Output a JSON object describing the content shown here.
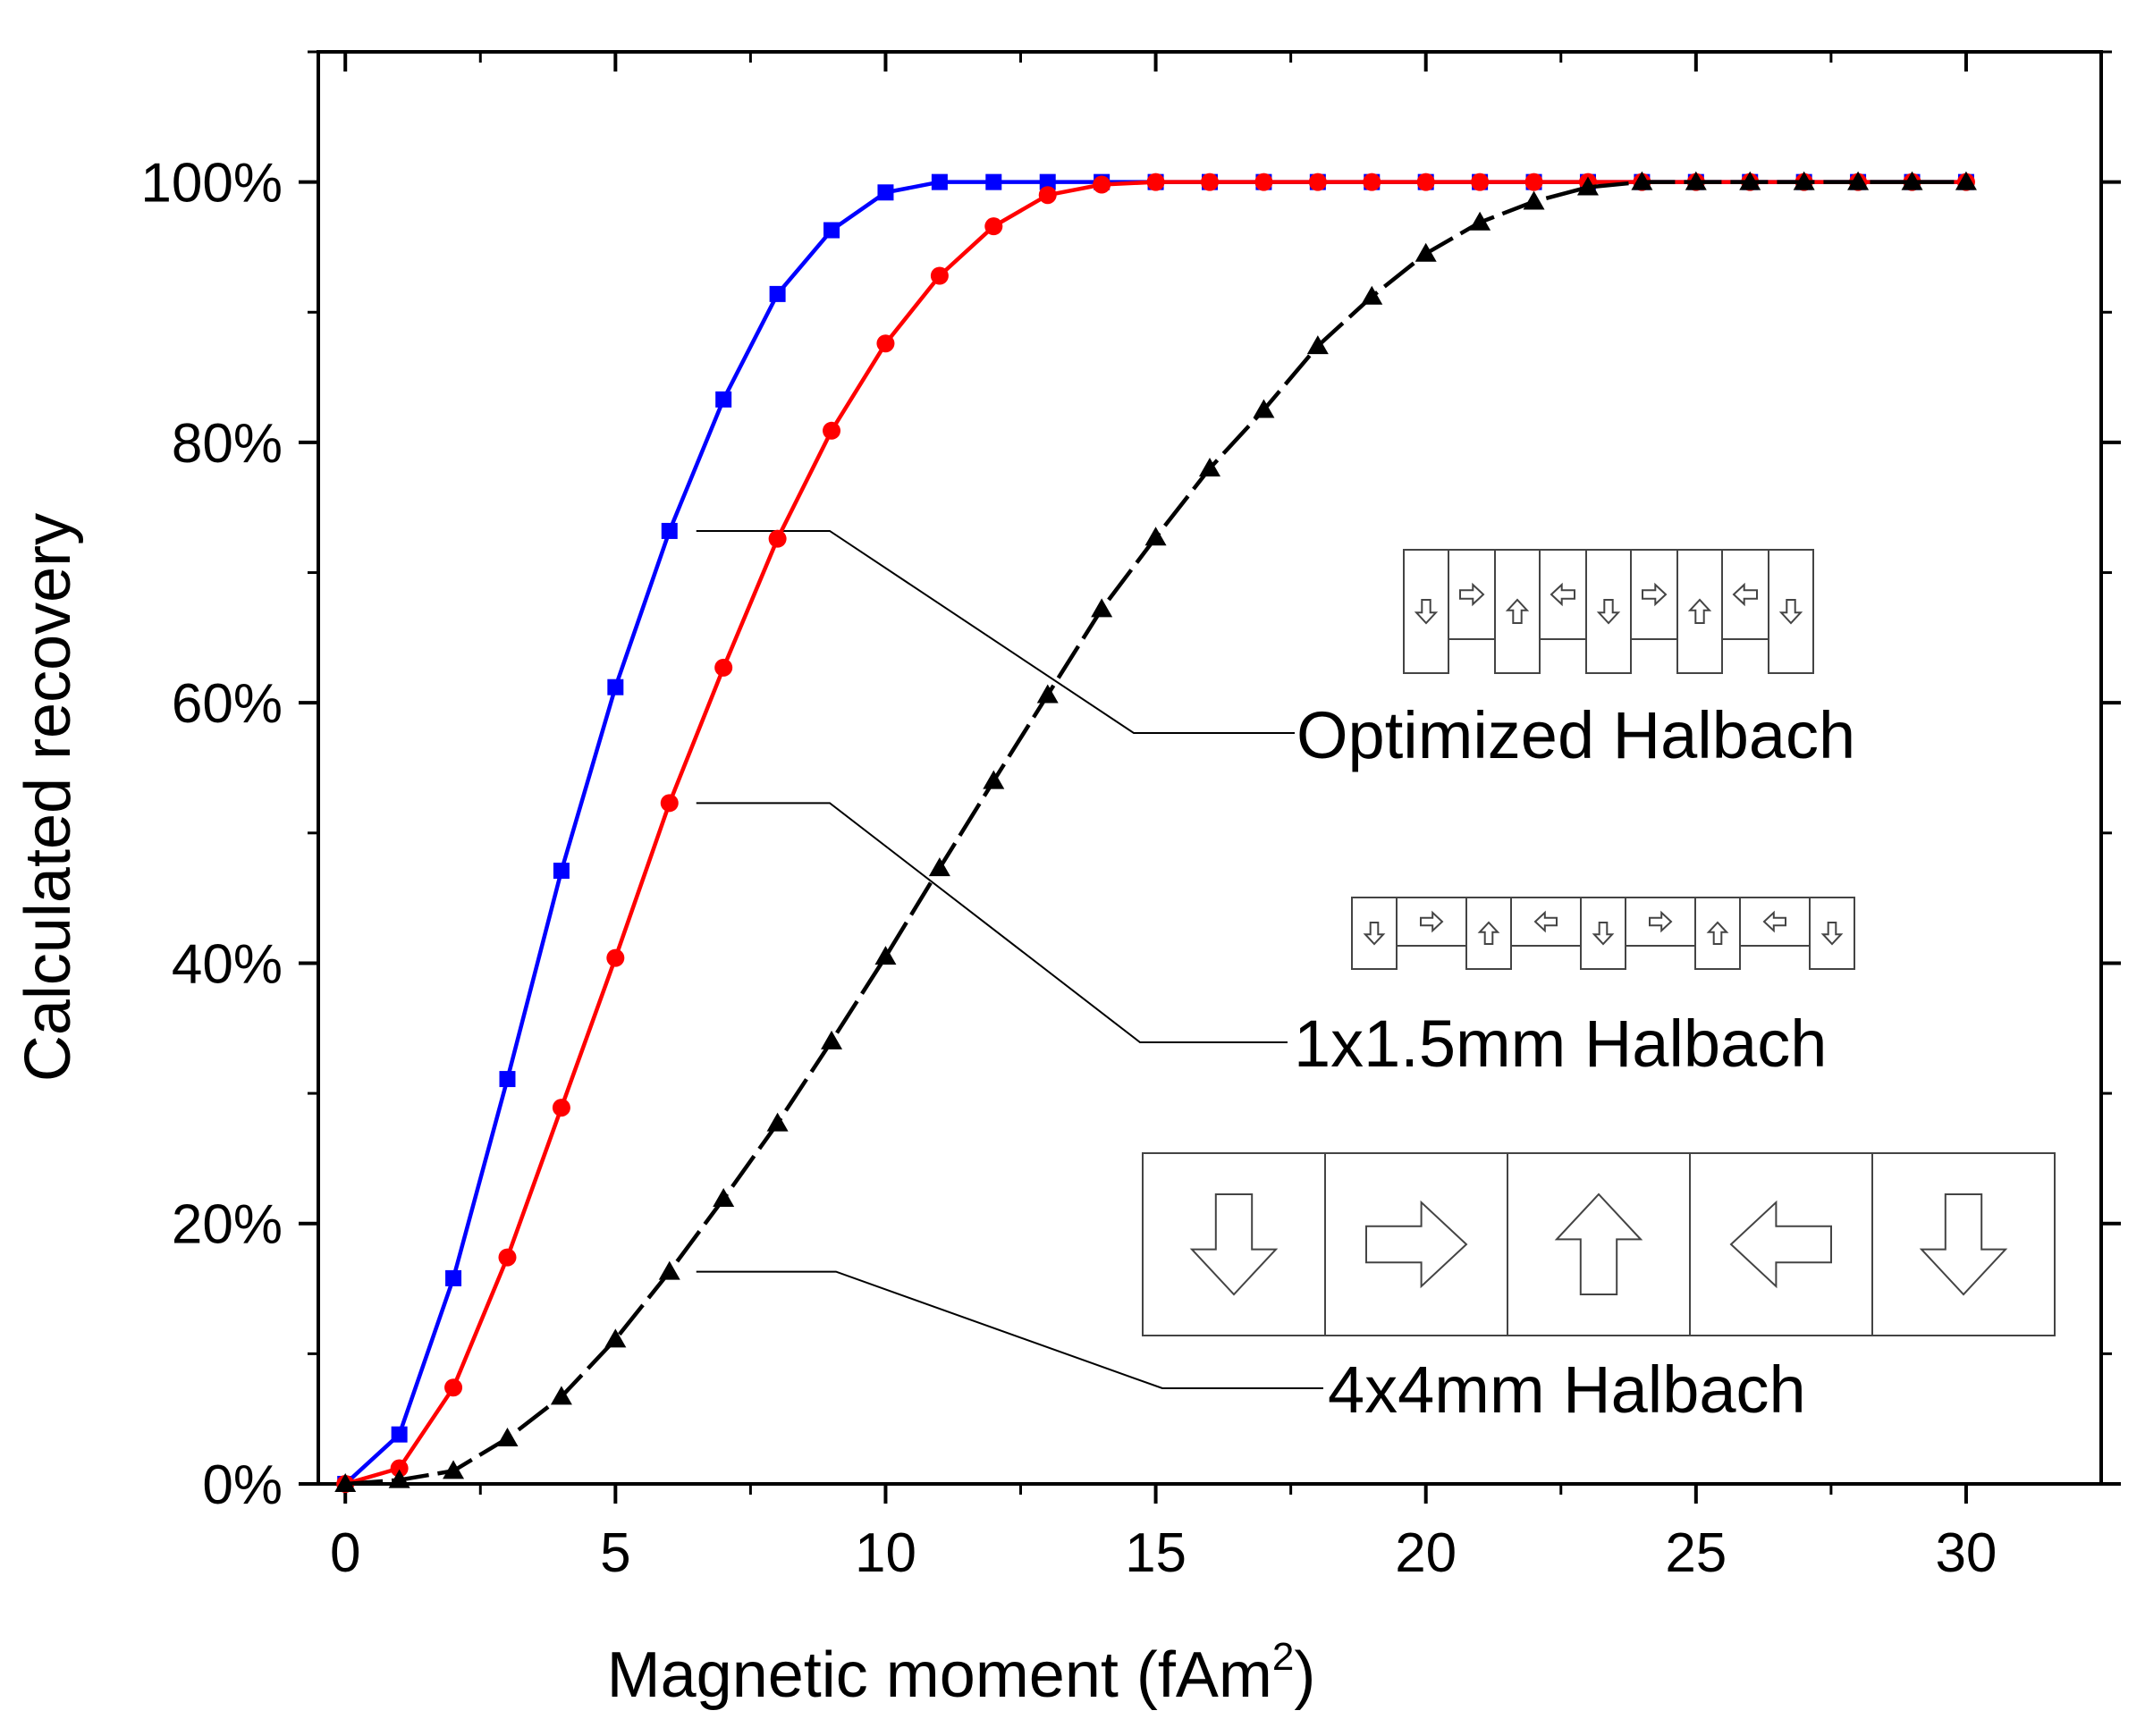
{
  "chart_data": {
    "type": "line",
    "title": "",
    "xlabel": "Magnetic moment (fAm",
    "xlabel_sup": "2",
    "xlabel_close": ")",
    "ylabel": "Calculated recovery",
    "xlim": [
      -0.5,
      32.5
    ],
    "ylim": [
      0,
      110
    ],
    "x_ticks": [
      0,
      5,
      10,
      15,
      20,
      25,
      30
    ],
    "x_tick_labels": [
      "0",
      "5",
      "10",
      "15",
      "20",
      "25",
      "30"
    ],
    "y_ticks": [
      0,
      20,
      40,
      60,
      80,
      100
    ],
    "y_tick_labels": [
      "0%",
      "20%",
      "40%",
      "60%",
      "80%",
      "100%"
    ],
    "grid": false,
    "series": [
      {
        "name": "Optimized Halbach",
        "color": "#0000ff",
        "marker": "square",
        "x": [
          0,
          1,
          2,
          3,
          4,
          5,
          6,
          7,
          8,
          9,
          10,
          11,
          12,
          13,
          14,
          15,
          16,
          17,
          18,
          19,
          20,
          21,
          22,
          23,
          24,
          25,
          26,
          27,
          28,
          29,
          30
        ],
        "values": [
          0,
          3.8,
          15.8,
          31.1,
          47.1,
          61.2,
          73.2,
          83.3,
          91.4,
          96.3,
          99.2,
          100,
          100,
          100,
          100,
          100,
          100,
          100,
          100,
          100,
          100,
          100,
          100,
          100,
          100,
          100,
          100,
          100,
          100,
          100,
          100
        ]
      },
      {
        "name": "1x1.5mm Halbach",
        "color": "#ff0000",
        "marker": "circle",
        "x": [
          0,
          1,
          2,
          3,
          4,
          5,
          6,
          7,
          8,
          9,
          10,
          11,
          12,
          13,
          14,
          15,
          16,
          17,
          18,
          19,
          20,
          21,
          22,
          23,
          24,
          25,
          26,
          27,
          28,
          29,
          30
        ],
        "values": [
          0,
          1.2,
          7.4,
          17.4,
          28.9,
          40.4,
          52.3,
          62.7,
          72.6,
          80.9,
          87.6,
          92.8,
          96.6,
          99,
          99.8,
          100,
          100,
          100,
          100,
          100,
          100,
          100,
          100,
          100,
          100,
          100,
          100,
          100,
          100,
          100,
          100
        ]
      },
      {
        "name": "4x4mm Halbach",
        "color": "#000000",
        "marker": "triangle",
        "x": [
          0,
          1,
          2,
          3,
          4,
          5,
          6,
          7,
          8,
          9,
          10,
          11,
          12,
          13,
          14,
          15,
          16,
          17,
          18,
          19,
          20,
          21,
          22,
          23,
          24,
          25,
          26,
          27,
          28,
          29,
          30
        ],
        "values": [
          0,
          0.3,
          1,
          3.5,
          6.7,
          11.1,
          16.3,
          21.9,
          27.7,
          34,
          40.5,
          47.3,
          54,
          60.6,
          67.2,
          72.7,
          78,
          82.5,
          87.4,
          91.2,
          94.5,
          96.9,
          98.5,
          99.6,
          100,
          100,
          100,
          100,
          100,
          100,
          100
        ]
      }
    ],
    "annotations": [
      {
        "text": "Optimized Halbach",
        "series": "Optimized Halbach",
        "anchor_x": 6,
        "layout": "optimized"
      },
      {
        "text": "1x1.5mm Halbach",
        "series": "1x1.5mm Halbach",
        "anchor_x": 6,
        "layout": "thin"
      },
      {
        "text": "4x4mm Halbach",
        "series": "4x4mm Halbach",
        "anchor_x": 6,
        "layout": "block"
      }
    ],
    "magnet_arrays": {
      "optimized": [
        "down",
        "right",
        "up",
        "left",
        "down",
        "right",
        "up",
        "left",
        "down"
      ],
      "thin": [
        "down",
        "right",
        "up",
        "left",
        "down",
        "right",
        "up",
        "left",
        "down"
      ],
      "block": [
        "down",
        "right",
        "up",
        "left",
        "down"
      ]
    }
  }
}
